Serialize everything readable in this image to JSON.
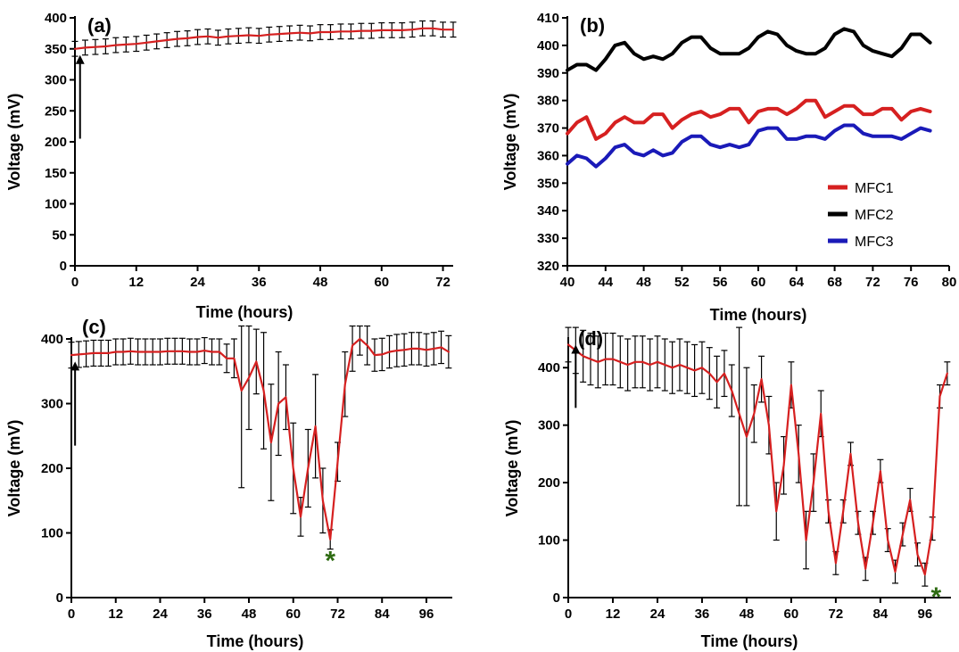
{
  "colors": {
    "mean_line": "#d62020",
    "error_bar": "#000000",
    "mfc1": "#d62020",
    "mfc2": "#000000",
    "mfc3": "#1a1ab8",
    "marker_star": "#2e6b12"
  },
  "chart_data": [
    {
      "id": "a",
      "type": "line",
      "panel_label": "(a)",
      "xlabel": "Time (hours)",
      "ylabel": "Voltage (mV)",
      "xlim": [
        0,
        74
      ],
      "ylim": [
        0,
        400
      ],
      "xticks": [
        0,
        12,
        24,
        36,
        48,
        60,
        72
      ],
      "yticks": [
        0,
        50,
        100,
        150,
        200,
        250,
        300,
        350,
        400
      ],
      "marker": "arrow",
      "marker_x": 1,
      "series": [
        {
          "x": [
            0,
            2,
            4,
            6,
            8,
            10,
            12,
            14,
            16,
            18,
            20,
            22,
            24,
            26,
            28,
            30,
            32,
            34,
            36,
            38,
            40,
            42,
            44,
            46,
            48,
            50,
            52,
            54,
            56,
            58,
            60,
            62,
            64,
            66,
            68,
            70,
            72,
            74
          ],
          "y": [
            350,
            352,
            353,
            354,
            356,
            357,
            358,
            360,
            362,
            364,
            366,
            367,
            369,
            370,
            368,
            370,
            371,
            372,
            371,
            373,
            374,
            375,
            376,
            375,
            377,
            377,
            378,
            378,
            379,
            379,
            380,
            380,
            380,
            381,
            383,
            383,
            381,
            381
          ],
          "err": [
            12,
            12,
            12,
            12,
            12,
            12,
            12,
            12,
            12,
            12,
            12,
            12,
            12,
            12,
            12,
            12,
            12,
            12,
            12,
            12,
            12,
            12,
            12,
            12,
            12,
            12,
            12,
            12,
            12,
            12,
            12,
            12,
            12,
            12,
            12,
            12,
            12,
            12
          ]
        }
      ]
    },
    {
      "id": "b",
      "type": "line",
      "panel_label": "(b)",
      "xlabel": "Time (hours)",
      "ylabel": "Voltage (mV)",
      "xlim": [
        40,
        80
      ],
      "ylim": [
        320,
        410
      ],
      "xticks": [
        40,
        44,
        48,
        52,
        56,
        60,
        64,
        68,
        72,
        76,
        80
      ],
      "yticks": [
        320,
        330,
        340,
        350,
        360,
        370,
        380,
        390,
        400,
        410
      ],
      "legend_position": "right",
      "series": [
        {
          "name": "MFC1",
          "color_key": "mfc1",
          "x": [
            40,
            41,
            42,
            43,
            44,
            45,
            46,
            47,
            48,
            49,
            50,
            51,
            52,
            53,
            54,
            55,
            56,
            57,
            58,
            59,
            60,
            61,
            62,
            63,
            64,
            65,
            66,
            67,
            68,
            69,
            70,
            71,
            72,
            73,
            74,
            75,
            76,
            77,
            78
          ],
          "y": [
            368,
            372,
            374,
            366,
            368,
            372,
            374,
            372,
            372,
            375,
            375,
            370,
            373,
            375,
            376,
            374,
            375,
            377,
            377,
            372,
            376,
            377,
            377,
            375,
            377,
            380,
            380,
            374,
            376,
            378,
            378,
            375,
            375,
            377,
            377,
            373,
            376,
            377,
            376
          ]
        },
        {
          "name": "MFC2",
          "color_key": "mfc2",
          "x": [
            40,
            41,
            42,
            43,
            44,
            45,
            46,
            47,
            48,
            49,
            50,
            51,
            52,
            53,
            54,
            55,
            56,
            57,
            58,
            59,
            60,
            61,
            62,
            63,
            64,
            65,
            66,
            67,
            68,
            69,
            70,
            71,
            72,
            73,
            74,
            75,
            76,
            77,
            78
          ],
          "y": [
            391,
            393,
            393,
            391,
            395,
            400,
            401,
            397,
            395,
            396,
            395,
            397,
            401,
            403,
            403,
            399,
            397,
            397,
            397,
            399,
            403,
            405,
            404,
            400,
            398,
            397,
            397,
            399,
            404,
            406,
            405,
            400,
            398,
            397,
            396,
            399,
            404,
            404,
            401
          ]
        },
        {
          "name": "MFC3",
          "color_key": "mfc3",
          "x": [
            40,
            41,
            42,
            43,
            44,
            45,
            46,
            47,
            48,
            49,
            50,
            51,
            52,
            53,
            54,
            55,
            56,
            57,
            58,
            59,
            60,
            61,
            62,
            63,
            64,
            65,
            66,
            67,
            68,
            69,
            70,
            71,
            72,
            73,
            74,
            75,
            76,
            77,
            78
          ],
          "y": [
            357,
            360,
            359,
            356,
            359,
            363,
            364,
            361,
            360,
            362,
            360,
            361,
            365,
            367,
            367,
            364,
            363,
            364,
            363,
            364,
            369,
            370,
            370,
            366,
            366,
            367,
            367,
            366,
            369,
            371,
            371,
            368,
            367,
            367,
            367,
            366,
            368,
            370,
            369
          ]
        }
      ]
    },
    {
      "id": "c",
      "type": "line",
      "panel_label": "(c)",
      "xlabel": "Time (hours)",
      "ylabel": "Voltage (mV)",
      "xlim": [
        0,
        103
      ],
      "ylim": [
        0,
        400
      ],
      "xticks": [
        0,
        12,
        24,
        36,
        48,
        60,
        72,
        84,
        96
      ],
      "yticks": [
        0,
        100,
        200,
        300,
        400
      ],
      "marker": "arrow",
      "marker_x": 1,
      "end_marker": "*",
      "end_marker_x": 70,
      "end_marker_y": 60,
      "series": [
        {
          "x": [
            0,
            2,
            4,
            6,
            8,
            10,
            12,
            14,
            16,
            18,
            20,
            22,
            24,
            26,
            28,
            30,
            32,
            34,
            36,
            38,
            40,
            42,
            44,
            46,
            48,
            50,
            52,
            54,
            56,
            58,
            60,
            62,
            64,
            66,
            68,
            70,
            72,
            74,
            76,
            78,
            80,
            82,
            84,
            86,
            88,
            90,
            92,
            94,
            96,
            98,
            100,
            102
          ],
          "y": [
            375,
            376,
            377,
            378,
            378,
            378,
            380,
            380,
            381,
            380,
            380,
            380,
            380,
            381,
            381,
            381,
            380,
            380,
            382,
            380,
            380,
            370,
            370,
            320,
            340,
            365,
            320,
            240,
            300,
            310,
            200,
            125,
            200,
            265,
            150,
            90,
            210,
            330,
            390,
            400,
            390,
            375,
            376,
            380,
            382,
            383,
            385,
            385,
            383,
            385,
            387,
            380
          ],
          "err": [
            20,
            20,
            20,
            20,
            20,
            20,
            20,
            20,
            20,
            20,
            20,
            20,
            20,
            20,
            20,
            20,
            20,
            20,
            20,
            20,
            20,
            22,
            30,
            150,
            80,
            50,
            90,
            90,
            80,
            50,
            70,
            30,
            60,
            80,
            50,
            15,
            30,
            50,
            40,
            25,
            30,
            25,
            25,
            25,
            25,
            25,
            25,
            25,
            25,
            25,
            25,
            25
          ]
        }
      ]
    },
    {
      "id": "d",
      "type": "line",
      "panel_label": "(d)",
      "xlabel": "Time (hours)",
      "ylabel": "Voltage (mV)",
      "xlim": [
        0,
        103
      ],
      "ylim": [
        0,
        450
      ],
      "xticks": [
        0,
        12,
        24,
        36,
        48,
        60,
        72,
        84,
        96
      ],
      "yticks": [
        0,
        100,
        200,
        300,
        400
      ],
      "marker": "arrow",
      "marker_x": 2,
      "end_marker": "*",
      "end_marker_x": 99,
      "end_marker_y": 5,
      "series": [
        {
          "x": [
            0,
            2,
            4,
            6,
            8,
            10,
            12,
            14,
            16,
            18,
            20,
            22,
            24,
            26,
            28,
            30,
            32,
            34,
            36,
            38,
            40,
            42,
            44,
            46,
            48,
            50,
            52,
            54,
            56,
            58,
            60,
            62,
            64,
            66,
            68,
            70,
            72,
            74,
            76,
            78,
            80,
            82,
            84,
            86,
            88,
            90,
            92,
            94,
            96,
            98,
            100,
            102
          ],
          "y": [
            440,
            430,
            420,
            415,
            410,
            415,
            415,
            410,
            405,
            410,
            410,
            405,
            410,
            405,
            400,
            405,
            400,
            395,
            400,
            390,
            375,
            390,
            360,
            320,
            280,
            320,
            380,
            300,
            150,
            230,
            370,
            250,
            100,
            200,
            320,
            150,
            60,
            150,
            250,
            130,
            50,
            130,
            220,
            100,
            45,
            110,
            170,
            75,
            40,
            120,
            350,
            390
          ],
          "err": [
            30,
            40,
            45,
            45,
            45,
            45,
            45,
            45,
            45,
            45,
            45,
            45,
            45,
            45,
            45,
            45,
            45,
            45,
            45,
            45,
            45,
            40,
            45,
            160,
            120,
            50,
            40,
            50,
            50,
            50,
            40,
            50,
            50,
            50,
            40,
            20,
            20,
            20,
            20,
            20,
            20,
            20,
            20,
            20,
            20,
            20,
            20,
            20,
            20,
            20,
            20,
            20
          ]
        }
      ]
    }
  ]
}
